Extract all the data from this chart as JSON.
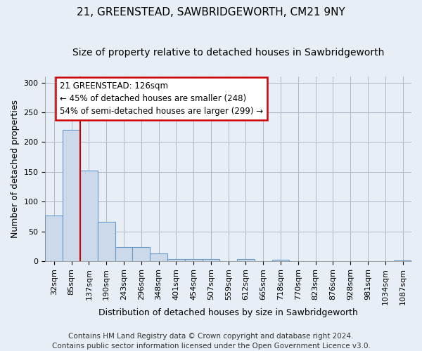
{
  "title_line1": "21, GREENSTEAD, SAWBRIDGEWORTH, CM21 9NY",
  "title_line2": "Size of property relative to detached houses in Sawbridgeworth",
  "xlabel": "Distribution of detached houses by size in Sawbridgeworth",
  "ylabel": "Number of detached properties",
  "footer_line1": "Contains HM Land Registry data © Crown copyright and database right 2024.",
  "footer_line2": "Contains public sector information licensed under the Open Government Licence v3.0.",
  "categories": [
    "32sqm",
    "85sqm",
    "137sqm",
    "190sqm",
    "243sqm",
    "296sqm",
    "348sqm",
    "401sqm",
    "454sqm",
    "507sqm",
    "559sqm",
    "612sqm",
    "665sqm",
    "718sqm",
    "770sqm",
    "823sqm",
    "876sqm",
    "928sqm",
    "981sqm",
    "1034sqm",
    "1087sqm"
  ],
  "values": [
    77,
    220,
    152,
    66,
    24,
    24,
    13,
    4,
    4,
    4,
    0,
    4,
    0,
    3,
    0,
    0,
    0,
    0,
    0,
    0,
    2
  ],
  "bar_color": "#ccd9ea",
  "bar_edge_color": "#6699cc",
  "red_line_color": "#cc0000",
  "annotation_text": "21 GREENSTEAD: 126sqm\n← 45% of detached houses are smaller (248)\n54% of semi-detached houses are larger (299) →",
  "annotation_box_facecolor": "#ffffff",
  "annotation_box_edgecolor": "#cc0000",
  "red_line_bar_index": 2,
  "ylim": [
    0,
    310
  ],
  "yticks": [
    0,
    50,
    100,
    150,
    200,
    250,
    300
  ],
  "bg_color": "#e8eef5",
  "plot_bg_color": "#e8eef5",
  "grid_color": "#b0b8c8",
  "title1_fontsize": 11,
  "title2_fontsize": 10,
  "axis_label_fontsize": 9,
  "tick_fontsize": 8,
  "annotation_fontsize": 8.5,
  "footer_fontsize": 7.5
}
